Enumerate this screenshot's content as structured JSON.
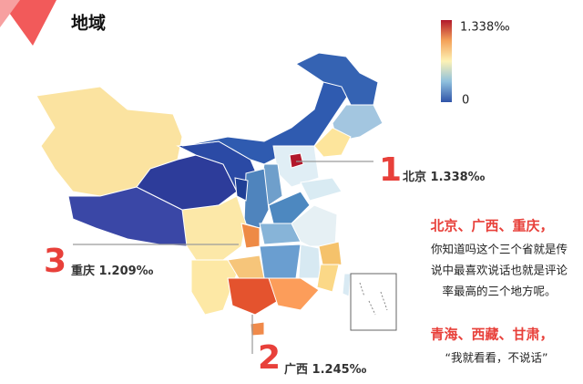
{
  "header": {
    "title": "地域"
  },
  "legend": {
    "max_label": "1.338‰",
    "min_label": "0"
  },
  "callouts": [
    {
      "rank": "1",
      "name": "北京",
      "value": "1.338‰"
    },
    {
      "rank": "2",
      "name": "广西",
      "value": "1.245‰"
    },
    {
      "rank": "3",
      "name": "重庆",
      "value": "1.209‰"
    }
  ],
  "note": {
    "heading": "北京、广西、重庆，",
    "lines": [
      "你知道吗这个三个省就是传",
      "说中最喜欢说话也就是评论",
      "率最高的三个地方呢。"
    ],
    "heading2": "青海、西藏、甘肃，",
    "quote": "“我就看看，不说话”"
  }
}
